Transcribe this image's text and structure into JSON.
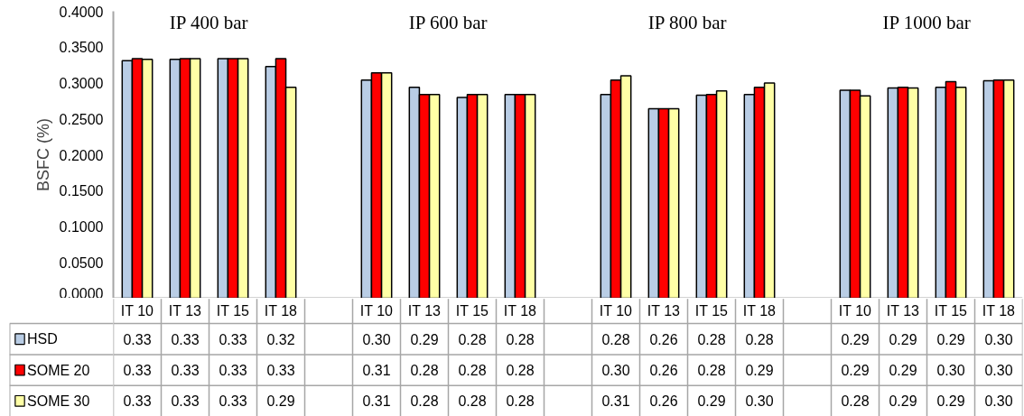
{
  "chart_data": {
    "type": "bar",
    "ylabel": "BSFC (%)",
    "annotations": [
      "IP 400 bar",
      "IP 600 bar",
      "IP 800 bar",
      "IP 1000 bar"
    ],
    "categories": [
      "IT 10",
      "IT 13",
      "IT 15",
      "IT 18",
      null,
      "IT 10",
      "IT 13",
      "IT 15",
      "IT 18",
      null,
      "IT 10",
      "IT 13",
      "IT 15",
      "IT 18",
      null,
      "IT 10",
      "IT 13",
      "IT 15",
      "IT 18"
    ],
    "series": [
      {
        "name": "HSD",
        "color": "#b9cde5",
        "values": [
          0.331,
          0.333,
          0.334,
          0.323,
          null,
          0.304,
          0.294,
          0.28,
          0.284,
          null,
          0.284,
          0.264,
          0.283,
          0.284,
          null,
          0.29,
          0.293,
          0.294,
          0.303
        ],
        "value_labels": [
          "0.33",
          "0.33",
          "0.33",
          "0.32",
          null,
          "0.30",
          "0.29",
          "0.28",
          "0.28",
          null,
          "0.28",
          "0.26",
          "0.28",
          "0.28",
          null,
          "0.29",
          "0.29",
          "0.29",
          "0.30"
        ]
      },
      {
        "name": "SOME 20",
        "color": "#ff0000",
        "values": [
          0.334,
          0.334,
          0.334,
          0.334,
          null,
          0.314,
          0.284,
          0.284,
          0.284,
          null,
          0.304,
          0.264,
          0.284,
          0.294,
          null,
          0.29,
          0.294,
          0.302,
          0.304
        ],
        "value_labels": [
          "0.33",
          "0.33",
          "0.33",
          "0.33",
          null,
          "0.31",
          "0.28",
          "0.28",
          "0.28",
          null,
          "0.30",
          "0.26",
          "0.28",
          "0.29",
          null,
          "0.29",
          "0.29",
          "0.30",
          "0.30"
        ]
      },
      {
        "name": "SOME 30",
        "color": "#ffffa6",
        "values": [
          0.333,
          0.334,
          0.334,
          0.294,
          null,
          0.314,
          0.284,
          0.284,
          0.284,
          null,
          0.31,
          0.264,
          0.289,
          0.3,
          null,
          0.282,
          0.293,
          0.294,
          0.304
        ],
        "value_labels": [
          "0.33",
          "0.33",
          "0.33",
          "0.29",
          null,
          "0.31",
          "0.28",
          "0.28",
          "0.28",
          null,
          "0.31",
          "0.26",
          "0.29",
          "0.30",
          null,
          "0.28",
          "0.29",
          "0.29",
          "0.30"
        ]
      }
    ],
    "ylim": [
      0,
      0.4
    ],
    "yticks": [
      {
        "value": 0,
        "label": "0.0000"
      },
      {
        "value": 0.05,
        "label": "0.0500"
      },
      {
        "value": 0.1,
        "label": "0.1000"
      },
      {
        "value": 0.15,
        "label": "0.1500"
      },
      {
        "value": 0.2,
        "label": "0.2000"
      },
      {
        "value": 0.25,
        "label": "0.2500"
      },
      {
        "value": 0.3,
        "label": "0.3000"
      },
      {
        "value": 0.35,
        "label": "0.3500"
      },
      {
        "value": 0.4,
        "label": "0.4000"
      }
    ],
    "grid": false,
    "legend": "bottom left"
  }
}
